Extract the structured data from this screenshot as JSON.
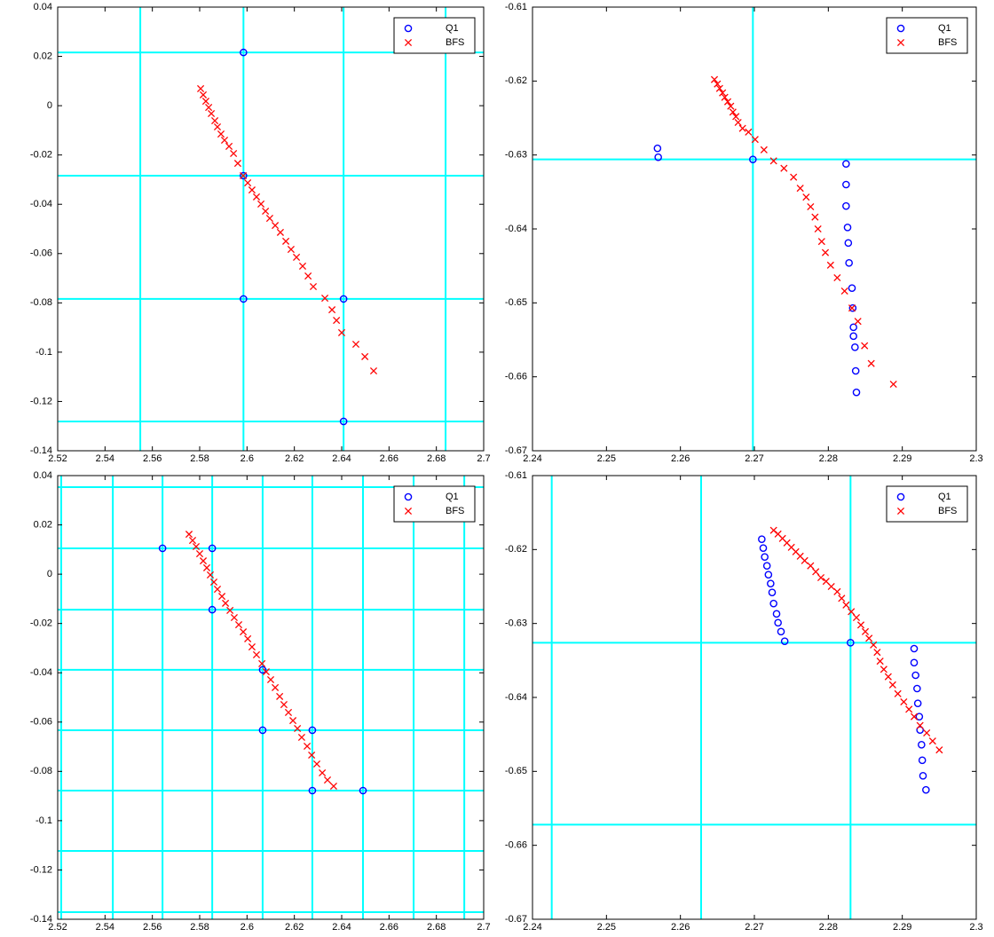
{
  "chart_data": [
    {
      "type": "scatter",
      "legend": "upper right",
      "line_color": "#00ffff",
      "xlim": [
        2.52,
        2.7
      ],
      "ylim": [
        -0.14,
        0.04
      ],
      "xticks": [
        2.52,
        2.54,
        2.56,
        2.58,
        2.6,
        2.62,
        2.64,
        2.66,
        2.68,
        2.7
      ],
      "yticks": [
        -0.14,
        -0.12,
        -0.1,
        -0.08,
        -0.06,
        -0.04,
        -0.02,
        0,
        0.02,
        0.04
      ],
      "vlines": [
        2.5549,
        2.5985,
        2.6408,
        2.6839
      ],
      "hlines": [
        0.0216,
        -0.0284,
        -0.0784,
        -0.1281
      ],
      "series": [
        {
          "name": "Q1",
          "color": "#0000ff",
          "marker": "o",
          "x": [
            2.5985,
            2.5985,
            2.5985,
            2.6408,
            2.6408
          ],
          "values": [
            0.0216,
            -0.0284,
            -0.0784,
            -0.0784,
            -0.1281
          ]
        },
        {
          "name": "BFS",
          "color": "#ff0000",
          "marker": "x",
          "x": [
            2.5804,
            2.5815,
            2.5826,
            2.5838,
            2.5849,
            2.5864,
            2.5875,
            2.589,
            2.5905,
            2.5924,
            2.5943,
            2.5961,
            2.5984,
            2.6003,
            2.6021,
            2.604,
            2.6059,
            2.6078,
            2.6096,
            2.6119,
            2.6141,
            2.6164,
            2.6186,
            2.6209,
            2.6235,
            2.6258,
            2.628,
            2.6329,
            2.6359,
            2.6378,
            2.64,
            2.646,
            2.6498,
            2.6535
          ],
          "values": [
            0.0069,
            0.0044,
            0.0018,
            -0.0007,
            -0.0032,
            -0.0061,
            -0.0086,
            -0.0115,
            -0.014,
            -0.0165,
            -0.0194,
            -0.0234,
            -0.0284,
            -0.0313,
            -0.0342,
            -0.037,
            -0.0399,
            -0.0428,
            -0.0457,
            -0.0486,
            -0.0514,
            -0.055,
            -0.0583,
            -0.0615,
            -0.0651,
            -0.0691,
            -0.0734,
            -0.0781,
            -0.0828,
            -0.0871,
            -0.0921,
            -0.0968,
            -0.1018,
            -0.1076
          ]
        }
      ]
    },
    {
      "type": "scatter",
      "legend": "upper right",
      "line_color": "#00ffff",
      "xlim": [
        2.24,
        2.3
      ],
      "ylim": [
        -0.67,
        -0.61
      ],
      "xticks": [
        2.24,
        2.25,
        2.26,
        2.27,
        2.28,
        2.29,
        2.3
      ],
      "yticks": [
        -0.67,
        -0.66,
        -0.65,
        -0.64,
        -0.63,
        -0.62,
        -0.61
      ],
      "vlines": [
        2.2698
      ],
      "hlines": [
        -0.6306
      ],
      "series": [
        {
          "name": "Q1",
          "color": "#0000ff",
          "marker": "o",
          "x": [
            2.2569,
            2.257,
            2.2698,
            2.2824,
            2.2824,
            2.2824,
            2.2826,
            2.2827,
            2.2828,
            2.2832,
            2.2833,
            2.2834,
            2.2834,
            2.2836,
            2.2837,
            2.2838
          ],
          "values": [
            -0.6291,
            -0.6303,
            -0.6306,
            -0.6312,
            -0.634,
            -0.6369,
            -0.6398,
            -0.6419,
            -0.6446,
            -0.648,
            -0.6507,
            -0.6533,
            -0.6545,
            -0.656,
            -0.6592,
            -0.6621
          ]
        },
        {
          "name": "BFS",
          "color": "#ff0000",
          "marker": "x",
          "x": [
            2.2646,
            2.265,
            2.2653,
            2.2657,
            2.266,
            2.2664,
            2.2668,
            2.2671,
            2.2675,
            2.2678,
            2.2684,
            2.2692,
            2.2701,
            2.2713,
            2.2726,
            2.274,
            2.2753,
            2.2762,
            2.277,
            2.2776,
            2.2782,
            2.2786,
            2.2791,
            2.2796,
            2.2803,
            2.2812,
            2.2822,
            2.2832,
            2.284,
            2.2849,
            2.2858,
            2.2888
          ],
          "values": [
            -0.6198,
            -0.6204,
            -0.621,
            -0.6216,
            -0.6222,
            -0.6228,
            -0.6234,
            -0.6242,
            -0.6248,
            -0.6256,
            -0.6264,
            -0.6269,
            -0.6279,
            -0.6293,
            -0.6308,
            -0.6318,
            -0.633,
            -0.6345,
            -0.6357,
            -0.637,
            -0.6384,
            -0.64,
            -0.6417,
            -0.6432,
            -0.6449,
            -0.6466,
            -0.6484,
            -0.6507,
            -0.6525,
            -0.6558,
            -0.6582,
            -0.661
          ]
        }
      ]
    },
    {
      "type": "scatter",
      "legend": "upper right",
      "line_color": "#00ffff",
      "xlim": [
        2.52,
        2.7
      ],
      "ylim": [
        -0.14,
        0.04
      ],
      "xticks": [
        2.52,
        2.54,
        2.56,
        2.58,
        2.6,
        2.62,
        2.64,
        2.66,
        2.68,
        2.7
      ],
      "yticks": [
        -0.14,
        -0.12,
        -0.1,
        -0.08,
        -0.06,
        -0.04,
        -0.02,
        0,
        0.02,
        0.04
      ],
      "vlines": [
        2.5215,
        2.5433,
        2.5643,
        2.5853,
        2.6066,
        2.6276,
        2.649,
        2.6704,
        2.6918
      ],
      "hlines": [
        0.0353,
        0.0105,
        -0.0144,
        -0.0388,
        -0.0633,
        -0.0878,
        -0.1123,
        -0.1371
      ],
      "series": [
        {
          "name": "Q1",
          "color": "#0000ff",
          "marker": "o",
          "x": [
            2.5643,
            2.5853,
            2.5853,
            2.6066,
            2.6066,
            2.6276,
            2.6276,
            2.649
          ],
          "values": [
            0.0105,
            0.0105,
            -0.0144,
            -0.0388,
            -0.0633,
            -0.0633,
            -0.0878,
            -0.0878
          ]
        },
        {
          "name": "BFS",
          "color": "#ff0000",
          "marker": "x",
          "x": [
            2.5755,
            2.577,
            2.5785,
            2.58,
            2.5815,
            2.583,
            2.5845,
            2.586,
            2.5875,
            2.5894,
            2.5909,
            2.5928,
            2.5946,
            2.5965,
            2.5984,
            2.6003,
            2.6021,
            2.604,
            2.6063,
            2.6081,
            2.61,
            2.6119,
            2.6138,
            2.6156,
            2.6175,
            2.6194,
            2.6213,
            2.6231,
            2.6254,
            2.6273,
            2.6295,
            2.6318,
            2.634,
            2.6366
          ],
          "values": [
            0.0162,
            0.0137,
            0.0112,
            0.0083,
            0.0054,
            0.0026,
            -0.0003,
            -0.0032,
            -0.0061,
            -0.009,
            -0.0118,
            -0.0147,
            -0.0176,
            -0.0205,
            -0.0234,
            -0.0262,
            -0.0295,
            -0.0327,
            -0.0363,
            -0.0396,
            -0.0428,
            -0.046,
            -0.0496,
            -0.0529,
            -0.0561,
            -0.0594,
            -0.0626,
            -0.0662,
            -0.0698,
            -0.0734,
            -0.077,
            -0.0806,
            -0.0835,
            -0.086
          ]
        }
      ]
    },
    {
      "type": "scatter",
      "legend": "upper right",
      "line_color": "#00ffff",
      "xlim": [
        2.24,
        2.3
      ],
      "ylim": [
        -0.67,
        -0.61
      ],
      "xticks": [
        2.24,
        2.25,
        2.26,
        2.27,
        2.28,
        2.29,
        2.3
      ],
      "yticks": [
        -0.67,
        -0.66,
        -0.65,
        -0.64,
        -0.63,
        -0.62,
        -0.61
      ],
      "vlines": [
        2.2426,
        2.2628,
        2.283
      ],
      "hlines": [
        -0.6326,
        -0.6572
      ],
      "series": [
        {
          "name": "Q1",
          "color": "#0000ff",
          "marker": "o",
          "x": [
            2.271,
            2.2712,
            2.2714,
            2.2717,
            2.2719,
            2.2722,
            2.2724,
            2.2726,
            2.273,
            2.2732,
            2.2736,
            2.2741,
            2.283,
            2.2916,
            2.2916,
            2.2918,
            2.292,
            2.2921,
            2.2923,
            2.2924,
            2.2926,
            2.2927,
            2.2928,
            2.2932
          ],
          "values": [
            -0.6186,
            -0.6198,
            -0.621,
            -0.6222,
            -0.6234,
            -0.6246,
            -0.6258,
            -0.6273,
            -0.6287,
            -0.6299,
            -0.6311,
            -0.6324,
            -0.6326,
            -0.6334,
            -0.6353,
            -0.637,
            -0.6388,
            -0.6408,
            -0.6426,
            -0.6444,
            -0.6464,
            -0.6485,
            -0.6506,
            -0.6525
          ]
        },
        {
          "name": "BFS",
          "color": "#ff0000",
          "marker": "x",
          "x": [
            2.2726,
            2.2732,
            2.2738,
            2.2744,
            2.275,
            2.2756,
            2.2762,
            2.2768,
            2.2776,
            2.2783,
            2.279,
            2.2797,
            2.2804,
            2.2812,
            2.2818,
            2.2824,
            2.2831,
            2.2838,
            2.2844,
            2.285,
            2.2855,
            2.2861,
            2.2866,
            2.287,
            2.2875,
            2.2881,
            2.2887,
            2.2894,
            2.2902,
            2.2909,
            2.2916,
            2.2924,
            2.2933,
            2.2941,
            2.295
          ],
          "values": [
            -0.6174,
            -0.6179,
            -0.6185,
            -0.6191,
            -0.6197,
            -0.6203,
            -0.6209,
            -0.6215,
            -0.6222,
            -0.623,
            -0.6238,
            -0.6243,
            -0.625,
            -0.6257,
            -0.6266,
            -0.6275,
            -0.6284,
            -0.6292,
            -0.6302,
            -0.6311,
            -0.632,
            -0.6329,
            -0.6339,
            -0.6351,
            -0.6362,
            -0.6372,
            -0.6383,
            -0.6395,
            -0.6406,
            -0.6416,
            -0.6426,
            -0.6438,
            -0.6448,
            -0.6459,
            -0.6471
          ]
        }
      ]
    }
  ]
}
